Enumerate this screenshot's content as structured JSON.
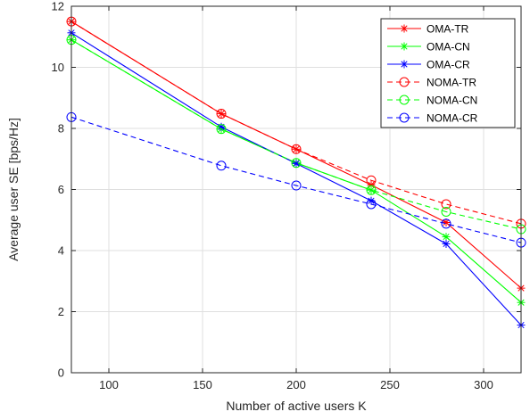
{
  "chart_data": {
    "type": "line",
    "xlabel": "Number of active users K",
    "ylabel": "Average user SE [bps/Hz]",
    "xlim": [
      80,
      320
    ],
    "ylim": [
      0,
      12
    ],
    "xticks": [
      100,
      150,
      200,
      250,
      300
    ],
    "yticks": [
      0,
      2,
      4,
      6,
      8,
      10,
      12
    ],
    "grid": true,
    "legend_position": "top-right",
    "x": [
      80,
      160,
      200,
      240,
      280,
      320
    ],
    "series": [
      {
        "name": "OMA-TR",
        "color": "#ff0000",
        "dash": "solid",
        "marker": "star",
        "values": [
          11.5,
          8.48,
          7.32,
          6.15,
          4.92,
          2.77
        ]
      },
      {
        "name": "OMA-CN",
        "color": "#00ff00",
        "dash": "solid",
        "marker": "star",
        "values": [
          10.9,
          7.98,
          6.87,
          5.98,
          4.45,
          2.3
        ]
      },
      {
        "name": "OMA-CR",
        "color": "#0000ff",
        "dash": "solid",
        "marker": "star",
        "values": [
          11.13,
          8.05,
          6.85,
          5.63,
          4.22,
          1.56
        ]
      },
      {
        "name": "NOMA-TR",
        "color": "#ff0000",
        "dash": "dashed",
        "marker": "circle",
        "values": [
          11.5,
          8.48,
          7.32,
          6.3,
          5.52,
          4.88
        ]
      },
      {
        "name": "NOMA-CN",
        "color": "#00ff00",
        "dash": "dashed",
        "marker": "circle",
        "values": [
          10.9,
          7.98,
          6.87,
          5.98,
          5.27,
          4.7
        ]
      },
      {
        "name": "NOMA-CR",
        "color": "#0000ff",
        "dash": "dashed",
        "marker": "circle",
        "values": [
          8.37,
          6.78,
          6.13,
          5.52,
          4.88,
          4.26
        ]
      }
    ]
  }
}
